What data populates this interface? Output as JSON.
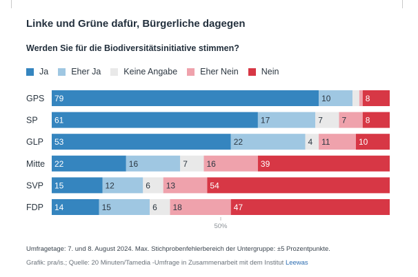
{
  "title": "Linke und Grüne dafür, Bürgerliche dagegen",
  "subtitle": "Werden Sie für die Biodiversitätsinitiative stimmen?",
  "footnote": "Umfragetage: 7. und 8. August 2024. Max. Stichprobenfehlerbereich der Untergruppe: ±5 Prozentpunkte.",
  "source_text": "Grafik: pra/is.; Quelle: 20 Minuten/Tamedia -Umfrage in Zusammenarbeit mit dem Institut",
  "source_link": "Leewas",
  "chart_data": {
    "type": "bar",
    "orientation": "horizontal",
    "stacked": true,
    "categories": [
      "GPS",
      "SP",
      "GLP",
      "Mitte",
      "SVP",
      "FDP"
    ],
    "series": [
      {
        "name": "Ja",
        "color": "#3585bf",
        "values": [
          79,
          61,
          53,
          22,
          15,
          14
        ]
      },
      {
        "name": "Eher Ja",
        "color": "#9fc7e2",
        "values": [
          10,
          17,
          22,
          16,
          12,
          15
        ]
      },
      {
        "name": "Keine Angabe",
        "color": "#e9e9e9",
        "values": [
          2,
          7,
          4,
          7,
          6,
          6
        ]
      },
      {
        "name": "Eher Nein",
        "color": "#efa2ac",
        "values": [
          1,
          7,
          11,
          16,
          13,
          18
        ]
      },
      {
        "name": "Nein",
        "color": "#d73745",
        "values": [
          8,
          8,
          10,
          39,
          54,
          47
        ]
      }
    ],
    "value_labels": [
      [
        "79",
        "10",
        "",
        "",
        "8"
      ],
      [
        "61",
        "17",
        "7",
        "7",
        "8"
      ],
      [
        "53",
        "22",
        "4",
        "11",
        "10"
      ],
      [
        "22",
        "16",
        "7",
        "16",
        "39"
      ],
      [
        "15",
        "12",
        "6",
        "13",
        "54"
      ],
      [
        "14",
        "15",
        "6",
        "18",
        "47"
      ]
    ],
    "xlim": [
      0,
      100
    ],
    "reference_line": 50,
    "reference_label": "50%",
    "legend_position": "top-left"
  }
}
